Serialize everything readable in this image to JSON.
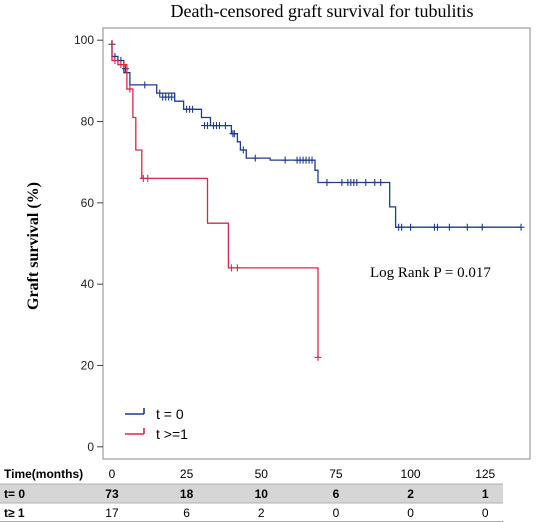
{
  "chart_data": {
    "type": "line",
    "step": true,
    "title": "Death-censored graft survival for tubulitis",
    "xlabel": "",
    "ylabel": "Graft survival (%)",
    "xlim": [
      -3,
      140
    ],
    "ylim": [
      -3,
      103
    ],
    "x_ticks": [
      0,
      25,
      50,
      75,
      100,
      125
    ],
    "y_ticks": [
      0,
      20,
      40,
      60,
      80,
      100
    ],
    "grid": false,
    "legend_position": "bottom-left",
    "annotation": "Log Rank P = 0.017",
    "series": [
      {
        "name": "t = 0",
        "color": "#1f3b8c",
        "steps": [
          [
            0,
            100
          ],
          [
            0,
            96
          ],
          [
            2,
            96
          ],
          [
            2,
            95
          ],
          [
            4,
            95
          ],
          [
            4,
            92
          ],
          [
            6,
            92
          ],
          [
            6,
            89
          ],
          [
            15,
            89
          ],
          [
            15,
            87
          ],
          [
            21,
            87
          ],
          [
            21,
            85
          ],
          [
            24,
            85
          ],
          [
            24,
            83
          ],
          [
            30,
            83
          ],
          [
            30,
            81
          ],
          [
            33,
            81
          ],
          [
            33,
            79
          ],
          [
            40,
            79
          ],
          [
            40,
            77
          ],
          [
            42,
            77
          ],
          [
            42,
            75
          ],
          [
            43,
            75
          ],
          [
            43,
            73
          ],
          [
            45,
            73
          ],
          [
            45,
            71
          ],
          [
            53,
            71
          ],
          [
            53,
            70.5
          ],
          [
            68,
            70.5
          ],
          [
            68,
            68
          ],
          [
            69,
            68
          ],
          [
            69,
            65
          ],
          [
            93,
            65
          ],
          [
            93,
            59
          ],
          [
            95,
            59
          ],
          [
            95,
            54
          ],
          [
            137,
            54
          ]
        ],
        "censored": [
          [
            0,
            99
          ],
          [
            1,
            96
          ],
          [
            3,
            95
          ],
          [
            4.5,
            93
          ],
          [
            11,
            89
          ],
          [
            16,
            87
          ],
          [
            17,
            86
          ],
          [
            18,
            86
          ],
          [
            19,
            86
          ],
          [
            20,
            86
          ],
          [
            25,
            83
          ],
          [
            26,
            83
          ],
          [
            27,
            83
          ],
          [
            31,
            79
          ],
          [
            32,
            79
          ],
          [
            34,
            79
          ],
          [
            35,
            79
          ],
          [
            36,
            79
          ],
          [
            38,
            79
          ],
          [
            40.5,
            77
          ],
          [
            41,
            77
          ],
          [
            44,
            73
          ],
          [
            48,
            71
          ],
          [
            58,
            70.5
          ],
          [
            62,
            70.5
          ],
          [
            63,
            70.5
          ],
          [
            64,
            70.5
          ],
          [
            65,
            70.5
          ],
          [
            66,
            70.5
          ],
          [
            67,
            70.5
          ],
          [
            72,
            65
          ],
          [
            77,
            65
          ],
          [
            79,
            65
          ],
          [
            80,
            65
          ],
          [
            81,
            65
          ],
          [
            82,
            65
          ],
          [
            85,
            65
          ],
          [
            88,
            65
          ],
          [
            90,
            65
          ],
          [
            96,
            54
          ],
          [
            97,
            54
          ],
          [
            100,
            54
          ],
          [
            108,
            54
          ],
          [
            109,
            54
          ],
          [
            113,
            54
          ],
          [
            119,
            54
          ],
          [
            124,
            54
          ],
          [
            137,
            54
          ]
        ]
      },
      {
        "name": "t >=1",
        "color": "#d42a4a",
        "steps": [
          [
            0,
            100
          ],
          [
            0,
            95
          ],
          [
            2,
            95
          ],
          [
            2,
            94
          ],
          [
            5,
            94
          ],
          [
            5,
            88
          ],
          [
            7,
            88
          ],
          [
            7,
            81
          ],
          [
            8,
            81
          ],
          [
            8,
            73
          ],
          [
            10,
            73
          ],
          [
            10,
            66
          ],
          [
            32,
            66
          ],
          [
            32,
            55
          ],
          [
            39,
            55
          ],
          [
            39,
            44
          ],
          [
            69,
            44
          ],
          [
            69,
            22
          ]
        ],
        "censored": [
          [
            1,
            95
          ],
          [
            3,
            94
          ],
          [
            4,
            94
          ],
          [
            6,
            88
          ],
          [
            10.5,
            66
          ],
          [
            12,
            66
          ],
          [
            40,
            44
          ],
          [
            42,
            44
          ],
          [
            69,
            22
          ]
        ]
      }
    ]
  },
  "risk_table": {
    "header_label": "Time(months)",
    "times": [
      "0",
      "25",
      "50",
      "75",
      "100",
      "125"
    ],
    "rows": [
      {
        "label": "t= 0",
        "values": [
          "73",
          "18",
          "10",
          "6",
          "2",
          "1"
        ],
        "shaded": true
      },
      {
        "label": "t≥ 1",
        "values": [
          "17",
          "6",
          "2",
          "0",
          "0",
          "0"
        ],
        "shaded": false
      }
    ],
    "shade_color": "#d6d6d6"
  },
  "legend_items": [
    {
      "label": "t = 0",
      "color": "#1f3b8c"
    },
    {
      "label": "t >=1",
      "color": "#d42a4a"
    }
  ]
}
